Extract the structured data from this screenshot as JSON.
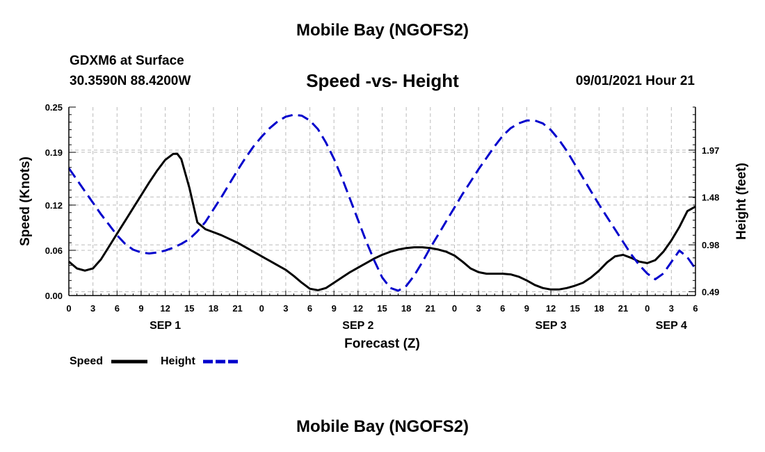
{
  "header": {
    "title": "Mobile Bay (NGOFS2)",
    "station": "GDXM6 at Surface",
    "coords": "30.3590N  88.4200W",
    "subtitle": "Speed -vs- Height",
    "datetime": "09/01/2021 Hour 21"
  },
  "footer": {
    "title": "Mobile Bay (NGOFS2)"
  },
  "colors": {
    "speed": "#000000",
    "height": "#0000cc",
    "grid": "#bbbbbb"
  },
  "chart_data": {
    "type": "line",
    "title": "Speed -vs- Height",
    "xlabel": "Forecast (Z)",
    "ylabel": "Speed (Knots)",
    "y2label": "Height (feet)",
    "xlim": [
      0,
      78
    ],
    "ylim": [
      0,
      0.25
    ],
    "y2lim": [
      0.45,
      2.42
    ],
    "grid": true,
    "legend_position": "bottom-left",
    "x_ticks": [
      0,
      3,
      6,
      9,
      12,
      15,
      18,
      21,
      24,
      27,
      30,
      33,
      36,
      39,
      42,
      45,
      48,
      51,
      54,
      57,
      60,
      63,
      66,
      69,
      72,
      75,
      78
    ],
    "x_tick_labels": [
      "0",
      "3",
      "6",
      "9",
      "12",
      "15",
      "18",
      "21",
      "0",
      "3",
      "6",
      "9",
      "12",
      "15",
      "18",
      "21",
      "0",
      "3",
      "6",
      "9",
      "12",
      "15",
      "18",
      "21",
      "0",
      "3",
      "6"
    ],
    "y_ticks": [
      0.0,
      0.06,
      0.12,
      0.19,
      0.25
    ],
    "y_tick_labels": [
      "0.00",
      "0.06",
      "0.12",
      "0.19",
      "0.25"
    ],
    "y2_ticks": [
      0.49,
      0.98,
      1.48,
      1.97
    ],
    "y2_tick_labels": [
      "0.49",
      "0.98",
      "1.48",
      "1.97"
    ],
    "day_labels": [
      {
        "x": 12,
        "label": "SEP 1"
      },
      {
        "x": 36,
        "label": "SEP 2"
      },
      {
        "x": 60,
        "label": "SEP 3"
      },
      {
        "x": 75,
        "label": "SEP 4"
      }
    ],
    "series": [
      {
        "name": "Speed",
        "axis": "left",
        "style": "solid",
        "x": [
          0,
          1,
          2,
          3,
          4,
          5,
          6,
          7,
          8,
          9,
          10,
          11,
          12,
          13,
          13.5,
          14,
          15,
          16,
          17,
          18,
          19,
          20,
          21,
          22,
          23,
          24,
          25,
          26,
          27,
          28,
          29,
          30,
          31,
          32,
          33,
          34,
          35,
          36,
          37,
          38,
          39,
          40,
          41,
          42,
          43,
          44,
          45,
          46,
          47,
          48,
          49,
          50,
          51,
          52,
          53,
          54,
          55,
          56,
          57,
          58,
          59,
          60,
          61,
          62,
          63,
          64,
          65,
          66,
          67,
          68,
          69,
          70,
          71,
          72,
          73,
          74,
          75,
          76,
          77,
          78
        ],
        "values": [
          0.045,
          0.036,
          0.033,
          0.036,
          0.048,
          0.065,
          0.082,
          0.099,
          0.116,
          0.133,
          0.15,
          0.166,
          0.18,
          0.188,
          0.188,
          0.181,
          0.143,
          0.097,
          0.088,
          0.084,
          0.08,
          0.075,
          0.07,
          0.064,
          0.058,
          0.052,
          0.046,
          0.04,
          0.034,
          0.026,
          0.017,
          0.009,
          0.007,
          0.01,
          0.017,
          0.024,
          0.031,
          0.037,
          0.043,
          0.049,
          0.054,
          0.058,
          0.061,
          0.063,
          0.064,
          0.064,
          0.063,
          0.061,
          0.058,
          0.053,
          0.045,
          0.036,
          0.031,
          0.029,
          0.029,
          0.029,
          0.028,
          0.025,
          0.02,
          0.014,
          0.01,
          0.008,
          0.008,
          0.01,
          0.013,
          0.017,
          0.024,
          0.033,
          0.044,
          0.052,
          0.054,
          0.05,
          0.045,
          0.043,
          0.047,
          0.058,
          0.073,
          0.091,
          0.112,
          0.118
        ]
      },
      {
        "name": "Height",
        "axis": "right",
        "style": "dashed",
        "x": [
          0,
          1,
          2,
          3,
          4,
          5,
          6,
          7,
          8,
          9,
          10,
          11,
          12,
          13,
          14,
          15,
          16,
          17,
          18,
          19,
          20,
          21,
          22,
          23,
          24,
          25,
          26,
          27,
          28,
          29,
          30,
          31,
          32,
          33,
          34,
          35,
          36,
          37,
          38,
          39,
          40,
          41,
          42,
          43,
          44,
          45,
          46,
          47,
          48,
          49,
          50,
          51,
          52,
          53,
          54,
          55,
          56,
          57,
          58,
          59,
          60,
          61,
          62,
          63,
          64,
          65,
          66,
          67,
          68,
          69,
          70,
          71,
          72,
          73,
          74,
          75,
          76,
          77,
          78
        ],
        "values": [
          1.78,
          1.66,
          1.54,
          1.42,
          1.3,
          1.19,
          1.08,
          0.99,
          0.93,
          0.9,
          0.89,
          0.9,
          0.92,
          0.95,
          0.99,
          1.04,
          1.12,
          1.22,
          1.35,
          1.48,
          1.62,
          1.76,
          1.89,
          2.01,
          2.11,
          2.2,
          2.27,
          2.32,
          2.34,
          2.33,
          2.28,
          2.19,
          2.05,
          1.88,
          1.68,
          1.46,
          1.24,
          1.02,
          0.82,
          0.64,
          0.53,
          0.5,
          0.55,
          0.66,
          0.8,
          0.95,
          1.09,
          1.23,
          1.37,
          1.51,
          1.64,
          1.77,
          1.89,
          2.01,
          2.12,
          2.2,
          2.25,
          2.28,
          2.28,
          2.25,
          2.18,
          2.08,
          1.96,
          1.82,
          1.68,
          1.54,
          1.4,
          1.27,
          1.14,
          1.01,
          0.88,
          0.77,
          0.68,
          0.62,
          0.68,
          0.8,
          0.92,
          0.85,
          0.73
        ]
      }
    ]
  }
}
